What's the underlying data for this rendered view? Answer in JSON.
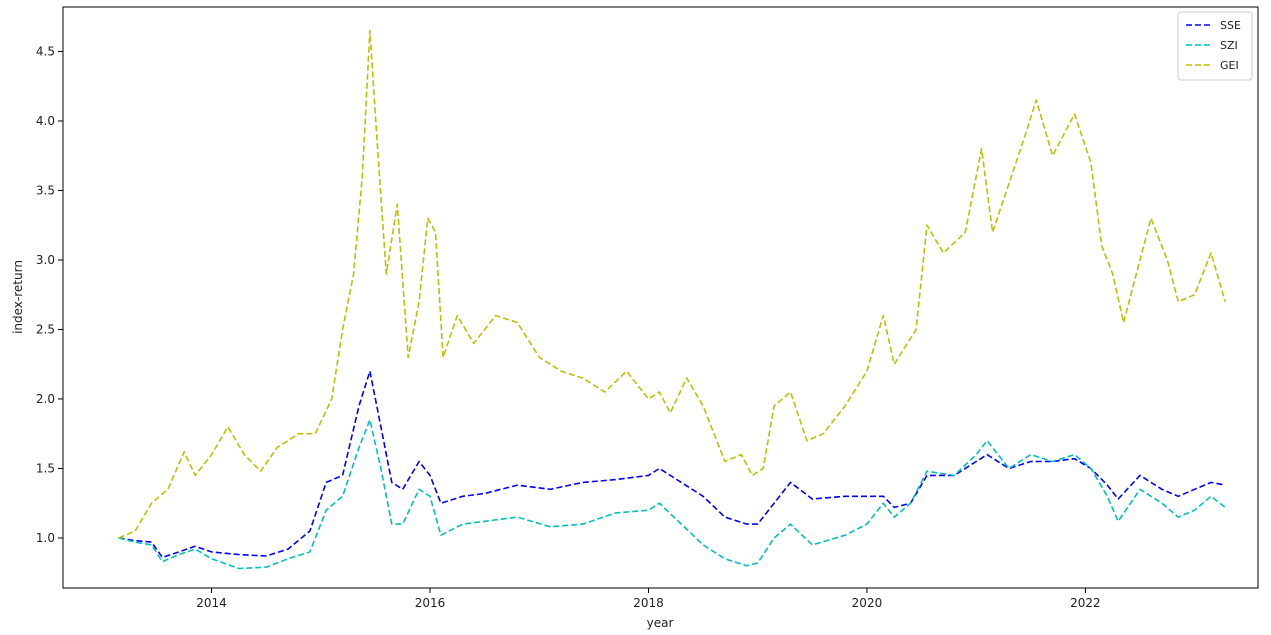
{
  "chart_data": {
    "type": "line",
    "title": "",
    "xlabel": "year",
    "ylabel": "index-return",
    "xlim": [
      2012.64,
      2023.58
    ],
    "ylim": [
      0.64,
      4.82
    ],
    "x_ticks": [
      2014,
      2016,
      2018,
      2020,
      2022
    ],
    "x_tick_labels": [
      "2014",
      "2016",
      "2018",
      "2020",
      "2022"
    ],
    "y_ticks": [
      1.0,
      1.5,
      2.0,
      2.5,
      3.0,
      3.5,
      4.0,
      4.5
    ],
    "y_tick_labels": [
      "1.0",
      "1.5",
      "2.0",
      "2.5",
      "3.0",
      "3.5",
      "4.0",
      "4.5"
    ],
    "grid": false,
    "legend_position": "top-right",
    "series": [
      {
        "name": "SSE",
        "color": "#0000ff",
        "points": [
          [
            2013.15,
            1.0
          ],
          [
            2013.3,
            0.98
          ],
          [
            2013.45,
            0.97
          ],
          [
            2013.55,
            0.86
          ],
          [
            2013.7,
            0.9
          ],
          [
            2013.85,
            0.94
          ],
          [
            2014.0,
            0.9
          ],
          [
            2014.25,
            0.88
          ],
          [
            2014.5,
            0.87
          ],
          [
            2014.7,
            0.92
          ],
          [
            2014.9,
            1.05
          ],
          [
            2015.05,
            1.4
          ],
          [
            2015.2,
            1.45
          ],
          [
            2015.35,
            1.95
          ],
          [
            2015.45,
            2.2
          ],
          [
            2015.55,
            1.8
          ],
          [
            2015.65,
            1.4
          ],
          [
            2015.75,
            1.35
          ],
          [
            2015.9,
            1.55
          ],
          [
            2016.0,
            1.45
          ],
          [
            2016.1,
            1.25
          ],
          [
            2016.3,
            1.3
          ],
          [
            2016.5,
            1.32
          ],
          [
            2016.8,
            1.38
          ],
          [
            2017.1,
            1.35
          ],
          [
            2017.4,
            1.4
          ],
          [
            2017.7,
            1.42
          ],
          [
            2018.0,
            1.45
          ],
          [
            2018.1,
            1.5
          ],
          [
            2018.3,
            1.4
          ],
          [
            2018.5,
            1.3
          ],
          [
            2018.7,
            1.15
          ],
          [
            2018.9,
            1.1
          ],
          [
            2019.0,
            1.1
          ],
          [
            2019.15,
            1.25
          ],
          [
            2019.3,
            1.4
          ],
          [
            2019.5,
            1.28
          ],
          [
            2019.8,
            1.3
          ],
          [
            2020.0,
            1.3
          ],
          [
            2020.15,
            1.3
          ],
          [
            2020.25,
            1.22
          ],
          [
            2020.4,
            1.25
          ],
          [
            2020.55,
            1.45
          ],
          [
            2020.8,
            1.45
          ],
          [
            2021.0,
            1.55
          ],
          [
            2021.1,
            1.6
          ],
          [
            2021.3,
            1.5
          ],
          [
            2021.5,
            1.55
          ],
          [
            2021.7,
            1.55
          ],
          [
            2021.9,
            1.57
          ],
          [
            2022.05,
            1.5
          ],
          [
            2022.2,
            1.38
          ],
          [
            2022.3,
            1.28
          ],
          [
            2022.5,
            1.45
          ],
          [
            2022.7,
            1.35
          ],
          [
            2022.85,
            1.3
          ],
          [
            2023.0,
            1.35
          ],
          [
            2023.15,
            1.4
          ],
          [
            2023.28,
            1.38
          ]
        ]
      },
      {
        "name": "SZI",
        "color": "#00bfbf",
        "points": [
          [
            2013.15,
            1.0
          ],
          [
            2013.3,
            0.97
          ],
          [
            2013.45,
            0.95
          ],
          [
            2013.55,
            0.83
          ],
          [
            2013.7,
            0.88
          ],
          [
            2013.85,
            0.92
          ],
          [
            2014.0,
            0.85
          ],
          [
            2014.25,
            0.78
          ],
          [
            2014.5,
            0.79
          ],
          [
            2014.7,
            0.85
          ],
          [
            2014.9,
            0.9
          ],
          [
            2015.05,
            1.2
          ],
          [
            2015.2,
            1.3
          ],
          [
            2015.35,
            1.65
          ],
          [
            2015.45,
            1.85
          ],
          [
            2015.55,
            1.5
          ],
          [
            2015.65,
            1.1
          ],
          [
            2015.75,
            1.1
          ],
          [
            2015.9,
            1.35
          ],
          [
            2016.0,
            1.3
          ],
          [
            2016.1,
            1.02
          ],
          [
            2016.3,
            1.1
          ],
          [
            2016.5,
            1.12
          ],
          [
            2016.8,
            1.15
          ],
          [
            2017.1,
            1.08
          ],
          [
            2017.4,
            1.1
          ],
          [
            2017.7,
            1.18
          ],
          [
            2018.0,
            1.2
          ],
          [
            2018.1,
            1.25
          ],
          [
            2018.3,
            1.1
          ],
          [
            2018.5,
            0.95
          ],
          [
            2018.7,
            0.85
          ],
          [
            2018.9,
            0.8
          ],
          [
            2019.0,
            0.82
          ],
          [
            2019.15,
            1.0
          ],
          [
            2019.3,
            1.1
          ],
          [
            2019.5,
            0.95
          ],
          [
            2019.8,
            1.02
          ],
          [
            2020.0,
            1.1
          ],
          [
            2020.15,
            1.25
          ],
          [
            2020.25,
            1.15
          ],
          [
            2020.4,
            1.25
          ],
          [
            2020.55,
            1.48
          ],
          [
            2020.8,
            1.45
          ],
          [
            2021.0,
            1.6
          ],
          [
            2021.1,
            1.7
          ],
          [
            2021.3,
            1.5
          ],
          [
            2021.5,
            1.6
          ],
          [
            2021.7,
            1.55
          ],
          [
            2021.9,
            1.6
          ],
          [
            2022.05,
            1.5
          ],
          [
            2022.2,
            1.3
          ],
          [
            2022.3,
            1.12
          ],
          [
            2022.5,
            1.35
          ],
          [
            2022.7,
            1.25
          ],
          [
            2022.85,
            1.15
          ],
          [
            2023.0,
            1.2
          ],
          [
            2023.15,
            1.3
          ],
          [
            2023.28,
            1.22
          ]
        ]
      },
      {
        "name": "GEI",
        "color": "#bfbf00",
        "points": [
          [
            2013.15,
            1.0
          ],
          [
            2013.3,
            1.05
          ],
          [
            2013.45,
            1.25
          ],
          [
            2013.6,
            1.35
          ],
          [
            2013.75,
            1.62
          ],
          [
            2013.85,
            1.45
          ],
          [
            2014.0,
            1.6
          ],
          [
            2014.15,
            1.8
          ],
          [
            2014.3,
            1.6
          ],
          [
            2014.45,
            1.48
          ],
          [
            2014.6,
            1.65
          ],
          [
            2014.8,
            1.75
          ],
          [
            2014.95,
            1.75
          ],
          [
            2015.1,
            2.0
          ],
          [
            2015.2,
            2.5
          ],
          [
            2015.3,
            2.9
          ],
          [
            2015.38,
            3.6
          ],
          [
            2015.45,
            4.65
          ],
          [
            2015.52,
            3.8
          ],
          [
            2015.6,
            2.9
          ],
          [
            2015.7,
            3.4
          ],
          [
            2015.8,
            2.3
          ],
          [
            2015.9,
            2.7
          ],
          [
            2015.98,
            3.3
          ],
          [
            2016.05,
            3.2
          ],
          [
            2016.12,
            2.3
          ],
          [
            2016.25,
            2.6
          ],
          [
            2016.4,
            2.4
          ],
          [
            2016.6,
            2.6
          ],
          [
            2016.8,
            2.55
          ],
          [
            2017.0,
            2.3
          ],
          [
            2017.2,
            2.2
          ],
          [
            2017.4,
            2.15
          ],
          [
            2017.6,
            2.05
          ],
          [
            2017.8,
            2.2
          ],
          [
            2018.0,
            2.0
          ],
          [
            2018.1,
            2.05
          ],
          [
            2018.2,
            1.9
          ],
          [
            2018.35,
            2.15
          ],
          [
            2018.5,
            1.95
          ],
          [
            2018.7,
            1.55
          ],
          [
            2018.85,
            1.6
          ],
          [
            2018.95,
            1.45
          ],
          [
            2019.05,
            1.5
          ],
          [
            2019.15,
            1.95
          ],
          [
            2019.3,
            2.05
          ],
          [
            2019.45,
            1.7
          ],
          [
            2019.6,
            1.75
          ],
          [
            2019.8,
            1.95
          ],
          [
            2020.0,
            2.2
          ],
          [
            2020.15,
            2.6
          ],
          [
            2020.25,
            2.25
          ],
          [
            2020.45,
            2.5
          ],
          [
            2020.55,
            3.25
          ],
          [
            2020.7,
            3.05
          ],
          [
            2020.9,
            3.2
          ],
          [
            2021.05,
            3.8
          ],
          [
            2021.15,
            3.2
          ],
          [
            2021.3,
            3.55
          ],
          [
            2021.45,
            3.9
          ],
          [
            2021.55,
            4.15
          ],
          [
            2021.7,
            3.75
          ],
          [
            2021.9,
            4.05
          ],
          [
            2022.05,
            3.7
          ],
          [
            2022.15,
            3.1
          ],
          [
            2022.25,
            2.9
          ],
          [
            2022.35,
            2.55
          ],
          [
            2022.5,
            3.0
          ],
          [
            2022.6,
            3.3
          ],
          [
            2022.75,
            3.0
          ],
          [
            2022.85,
            2.7
          ],
          [
            2023.0,
            2.75
          ],
          [
            2023.15,
            3.05
          ],
          [
            2023.28,
            2.7
          ]
        ]
      }
    ]
  }
}
